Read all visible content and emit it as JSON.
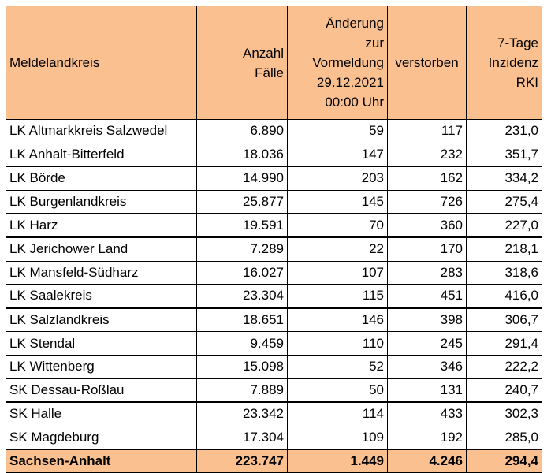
{
  "table": {
    "headers": {
      "district": "Meldelandkreis",
      "cases": [
        "Anzahl",
        "Fälle"
      ],
      "change": [
        "Änderung",
        "zur",
        "Vormeldung",
        "29.12.2021",
        "00:00 Uhr"
      ],
      "deceased": "verstorben",
      "incidence": [
        "7-Tage",
        "Inzidenz",
        "RKI"
      ]
    },
    "rows": [
      {
        "district": "LK Altmarkkreis Salzwedel",
        "cases": "6.890",
        "change": "59",
        "deceased": "117",
        "incidence": "231,0"
      },
      {
        "district": "LK Anhalt-Bitterfeld",
        "cases": "18.036",
        "change": "147",
        "deceased": "232",
        "incidence": "351,7"
      },
      {
        "district": "LK Börde",
        "cases": "14.990",
        "change": "203",
        "deceased": "162",
        "incidence": "334,2"
      },
      {
        "district": "LK Burgenlandkreis",
        "cases": "25.877",
        "change": "145",
        "deceased": "726",
        "incidence": "275,4"
      },
      {
        "district": "LK Harz",
        "cases": "19.591",
        "change": "70",
        "deceased": "360",
        "incidence": "227,0"
      },
      {
        "district": "LK Jerichower Land",
        "cases": "7.289",
        "change": "22",
        "deceased": "170",
        "incidence": "218,1"
      },
      {
        "district": "LK Mansfeld-Südharz",
        "cases": "16.027",
        "change": "107",
        "deceased": "283",
        "incidence": "318,6"
      },
      {
        "district": "LK Saalekreis",
        "cases": "23.304",
        "change": "115",
        "deceased": "451",
        "incidence": "416,0"
      },
      {
        "district": "LK Salzlandkreis",
        "cases": "18.651",
        "change": "146",
        "deceased": "398",
        "incidence": "306,7"
      },
      {
        "district": "LK Stendal",
        "cases": "9.459",
        "change": "110",
        "deceased": "245",
        "incidence": "291,4"
      },
      {
        "district": "LK Wittenberg",
        "cases": "15.098",
        "change": "52",
        "deceased": "346",
        "incidence": "222,2"
      },
      {
        "district": "SK Dessau-Roßlau",
        "cases": "7.889",
        "change": "50",
        "deceased": "131",
        "incidence": "240,7"
      },
      {
        "district": "SK Halle",
        "cases": "23.342",
        "change": "114",
        "deceased": "433",
        "incidence": "302,3"
      },
      {
        "district": "SK Magdeburg",
        "cases": "17.304",
        "change": "109",
        "deceased": "192",
        "incidence": "285,0"
      }
    ],
    "total": {
      "district": "Sachsen-Anhalt",
      "cases": "223.747",
      "change": "1.449",
      "deceased": "4.246",
      "incidence": "294,4"
    }
  },
  "colors": {
    "header_background": "#fac090",
    "border": "#000000"
  }
}
